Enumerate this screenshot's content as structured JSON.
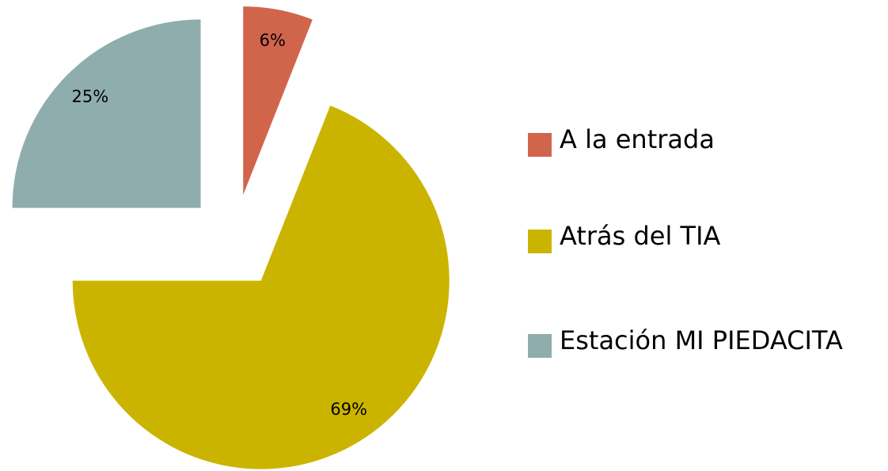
{
  "chart_data": {
    "type": "pie",
    "categories": [
      "A la entrada",
      "Atrás del TIA",
      "Estación MI PIEDACITA"
    ],
    "values": [
      6,
      69,
      25
    ],
    "value_labels": [
      "6%",
      "69%",
      "25%"
    ],
    "colors": [
      "#d1654b",
      "#cbb400",
      "#8fadad"
    ],
    "legend": "right"
  }
}
